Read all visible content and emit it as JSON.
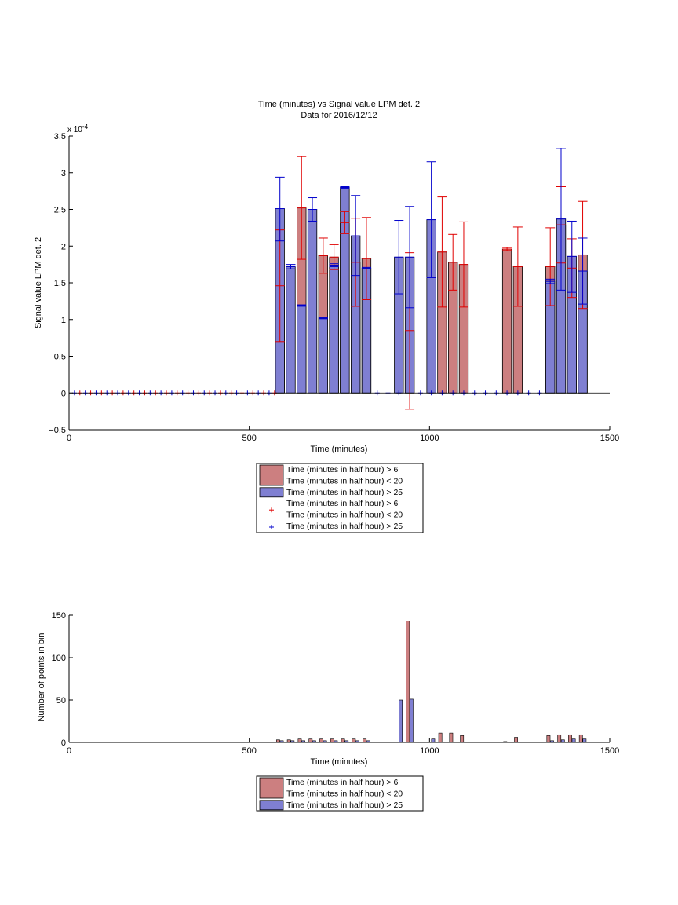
{
  "colors": {
    "red_fill": "#cc7f80",
    "blue_fill": "#7f7fd2",
    "red_err": "#e00000",
    "blue_err": "#0000cc",
    "axis": "#000000"
  },
  "chart_data": [
    {
      "type": "bar",
      "title_line1": "Time (minutes) vs Signal value LPM det. 2",
      "title_line2": "Data for 2016/12/12",
      "xlabel": "Time (minutes)",
      "ylabel": "Signal value LPM det. 2",
      "exponent_label": "x 10",
      "exponent_power": "-4",
      "xlim": [
        0,
        1500
      ],
      "ylim": [
        -0.5,
        3.5
      ],
      "xticks": [
        0,
        500,
        1000,
        1500
      ],
      "yticks": [
        -0.5,
        0,
        0.5,
        1,
        1.5,
        2,
        2.5,
        3,
        3.5
      ],
      "ytick_labels": [
        "−0.5",
        "0",
        "0.5",
        "1",
        "1.5",
        "2",
        "2.5",
        "3",
        "3.5"
      ],
      "legend_position": "below",
      "legend": [
        {
          "kind": "patch",
          "series": "red",
          "lines": [
            "Time (minutes in half hour) > 6",
            "Time (minutes in half hour) < 20"
          ]
        },
        {
          "kind": "patch",
          "series": "blue",
          "lines": [
            "Time (minutes in half hour) > 25"
          ]
        },
        {
          "kind": "marker",
          "series": "red",
          "lines": [
            "Time (minutes in half hour) > 6",
            "Time (minutes in half hour) < 20"
          ]
        },
        {
          "kind": "marker",
          "series": "blue",
          "lines": [
            "Time (minutes in half hour) > 25"
          ]
        }
      ],
      "series": [
        {
          "id": "red",
          "bars": [
            {
              "x": 585,
              "y": 1.46,
              "lo": 0.7,
              "hi": 2.22
            },
            {
              "x": 645,
              "y": 2.52,
              "lo": 1.82,
              "hi": 3.22
            },
            {
              "x": 705,
              "y": 1.87,
              "lo": 1.63,
              "hi": 2.11
            },
            {
              "x": 735,
              "y": 1.85,
              "lo": 1.68,
              "hi": 2.02
            },
            {
              "x": 765,
              "y": 2.32,
              "lo": 2.17,
              "hi": 2.47
            },
            {
              "x": 795,
              "y": 1.78,
              "lo": 1.18,
              "hi": 2.38
            },
            {
              "x": 825,
              "y": 1.83,
              "lo": 1.27,
              "hi": 2.39
            },
            {
              "x": 945,
              "y": 0.85,
              "lo": -0.22,
              "hi": 1.91
            },
            {
              "x": 1035,
              "y": 1.92,
              "lo": 1.17,
              "hi": 2.67
            },
            {
              "x": 1065,
              "y": 1.78,
              "lo": 1.4,
              "hi": 2.16
            },
            {
              "x": 1095,
              "y": 1.75,
              "lo": 1.17,
              "hi": 2.33
            },
            {
              "x": 1215,
              "y": 1.96,
              "lo": 1.94,
              "hi": 1.98
            },
            {
              "x": 1245,
              "y": 1.72,
              "lo": 1.18,
              "hi": 2.26
            },
            {
              "x": 1335,
              "y": 1.72,
              "lo": 1.19,
              "hi": 2.25
            },
            {
              "x": 1365,
              "y": 2.29,
              "lo": 1.77,
              "hi": 2.81
            },
            {
              "x": 1395,
              "y": 1.7,
              "lo": 1.3,
              "hi": 2.1
            },
            {
              "x": 1425,
              "y": 1.88,
              "lo": 1.15,
              "hi": 2.61
            }
          ],
          "zero_markers": [
            30,
            60,
            90,
            120,
            150,
            180,
            210,
            240,
            270,
            300,
            330,
            360,
            390,
            420,
            450,
            480,
            510,
            540,
            570
          ]
        },
        {
          "id": "blue",
          "bars": [
            {
              "x": 585,
              "y": 2.51,
              "lo": 2.07,
              "hi": 2.94
            },
            {
              "x": 615,
              "y": 1.72,
              "lo": 1.69,
              "hi": 1.75
            },
            {
              "x": 645,
              "y": 1.19,
              "lo": 1.18,
              "hi": 1.2
            },
            {
              "x": 675,
              "y": 2.5,
              "lo": 2.34,
              "hi": 2.66
            },
            {
              "x": 705,
              "y": 1.02,
              "lo": 1.01,
              "hi": 1.03
            },
            {
              "x": 735,
              "y": 1.74,
              "lo": 1.72,
              "hi": 1.76
            },
            {
              "x": 765,
              "y": 2.8,
              "lo": 2.79,
              "hi": 2.81
            },
            {
              "x": 795,
              "y": 2.14,
              "lo": 1.6,
              "hi": 2.69
            },
            {
              "x": 825,
              "y": 1.7,
              "lo": 1.69,
              "hi": 1.71
            },
            {
              "x": 915,
              "y": 1.85,
              "lo": 1.35,
              "hi": 2.35
            },
            {
              "x": 945,
              "y": 1.85,
              "lo": 1.16,
              "hi": 2.54
            },
            {
              "x": 1005,
              "y": 2.36,
              "lo": 1.57,
              "hi": 3.15
            },
            {
              "x": 1335,
              "y": 1.52,
              "lo": 1.49,
              "hi": 1.55
            },
            {
              "x": 1365,
              "y": 2.37,
              "lo": 1.4,
              "hi": 3.33
            },
            {
              "x": 1395,
              "y": 1.86,
              "lo": 1.37,
              "hi": 2.34
            },
            {
              "x": 1425,
              "y": 1.66,
              "lo": 1.21,
              "hi": 2.11
            }
          ],
          "zero_markers": [
            15,
            45,
            75,
            105,
            135,
            165,
            195,
            225,
            255,
            285,
            315,
            345,
            375,
            405,
            435,
            465,
            495,
            525,
            555,
            855,
            885,
            915,
            975,
            1005,
            1035,
            1065,
            1095,
            1125,
            1155,
            1185,
            1215,
            1245,
            1275,
            1305
          ]
        }
      ]
    },
    {
      "type": "bar",
      "xlabel": "Time (minutes)",
      "ylabel": "Number of points in bin",
      "xlim": [
        0,
        1500
      ],
      "ylim": [
        0,
        150
      ],
      "xticks": [
        0,
        500,
        1000,
        1500
      ],
      "yticks": [
        0,
        50,
        100,
        150
      ],
      "legend_position": "below",
      "legend": [
        {
          "kind": "patch",
          "series": "red",
          "lines": [
            "Time (minutes in half hour) > 6",
            "Time (minutes in half hour) < 20"
          ]
        },
        {
          "kind": "patch",
          "series": "blue",
          "lines": [
            "Time (minutes in half hour) > 25"
          ]
        }
      ],
      "series": [
        {
          "id": "red",
          "bars": [
            {
              "x": 580,
              "y": 3
            },
            {
              "x": 610,
              "y": 3
            },
            {
              "x": 640,
              "y": 4
            },
            {
              "x": 670,
              "y": 4
            },
            {
              "x": 700,
              "y": 4
            },
            {
              "x": 730,
              "y": 4
            },
            {
              "x": 760,
              "y": 4
            },
            {
              "x": 790,
              "y": 4
            },
            {
              "x": 820,
              "y": 4
            },
            {
              "x": 940,
              "y": 143
            },
            {
              "x": 1030,
              "y": 11
            },
            {
              "x": 1060,
              "y": 11
            },
            {
              "x": 1090,
              "y": 8
            },
            {
              "x": 1210,
              "y": 1
            },
            {
              "x": 1240,
              "y": 6
            },
            {
              "x": 1330,
              "y": 8
            },
            {
              "x": 1360,
              "y": 9
            },
            {
              "x": 1390,
              "y": 9
            },
            {
              "x": 1420,
              "y": 9
            }
          ]
        },
        {
          "id": "blue",
          "bars": [
            {
              "x": 590,
              "y": 2
            },
            {
              "x": 620,
              "y": 2
            },
            {
              "x": 650,
              "y": 2
            },
            {
              "x": 680,
              "y": 2
            },
            {
              "x": 710,
              "y": 2
            },
            {
              "x": 740,
              "y": 2
            },
            {
              "x": 770,
              "y": 2
            },
            {
              "x": 800,
              "y": 2
            },
            {
              "x": 830,
              "y": 2
            },
            {
              "x": 920,
              "y": 50
            },
            {
              "x": 950,
              "y": 51
            },
            {
              "x": 1010,
              "y": 4
            },
            {
              "x": 1340,
              "y": 2
            },
            {
              "x": 1370,
              "y": 3
            },
            {
              "x": 1400,
              "y": 4
            },
            {
              "x": 1430,
              "y": 4
            }
          ]
        }
      ]
    }
  ]
}
